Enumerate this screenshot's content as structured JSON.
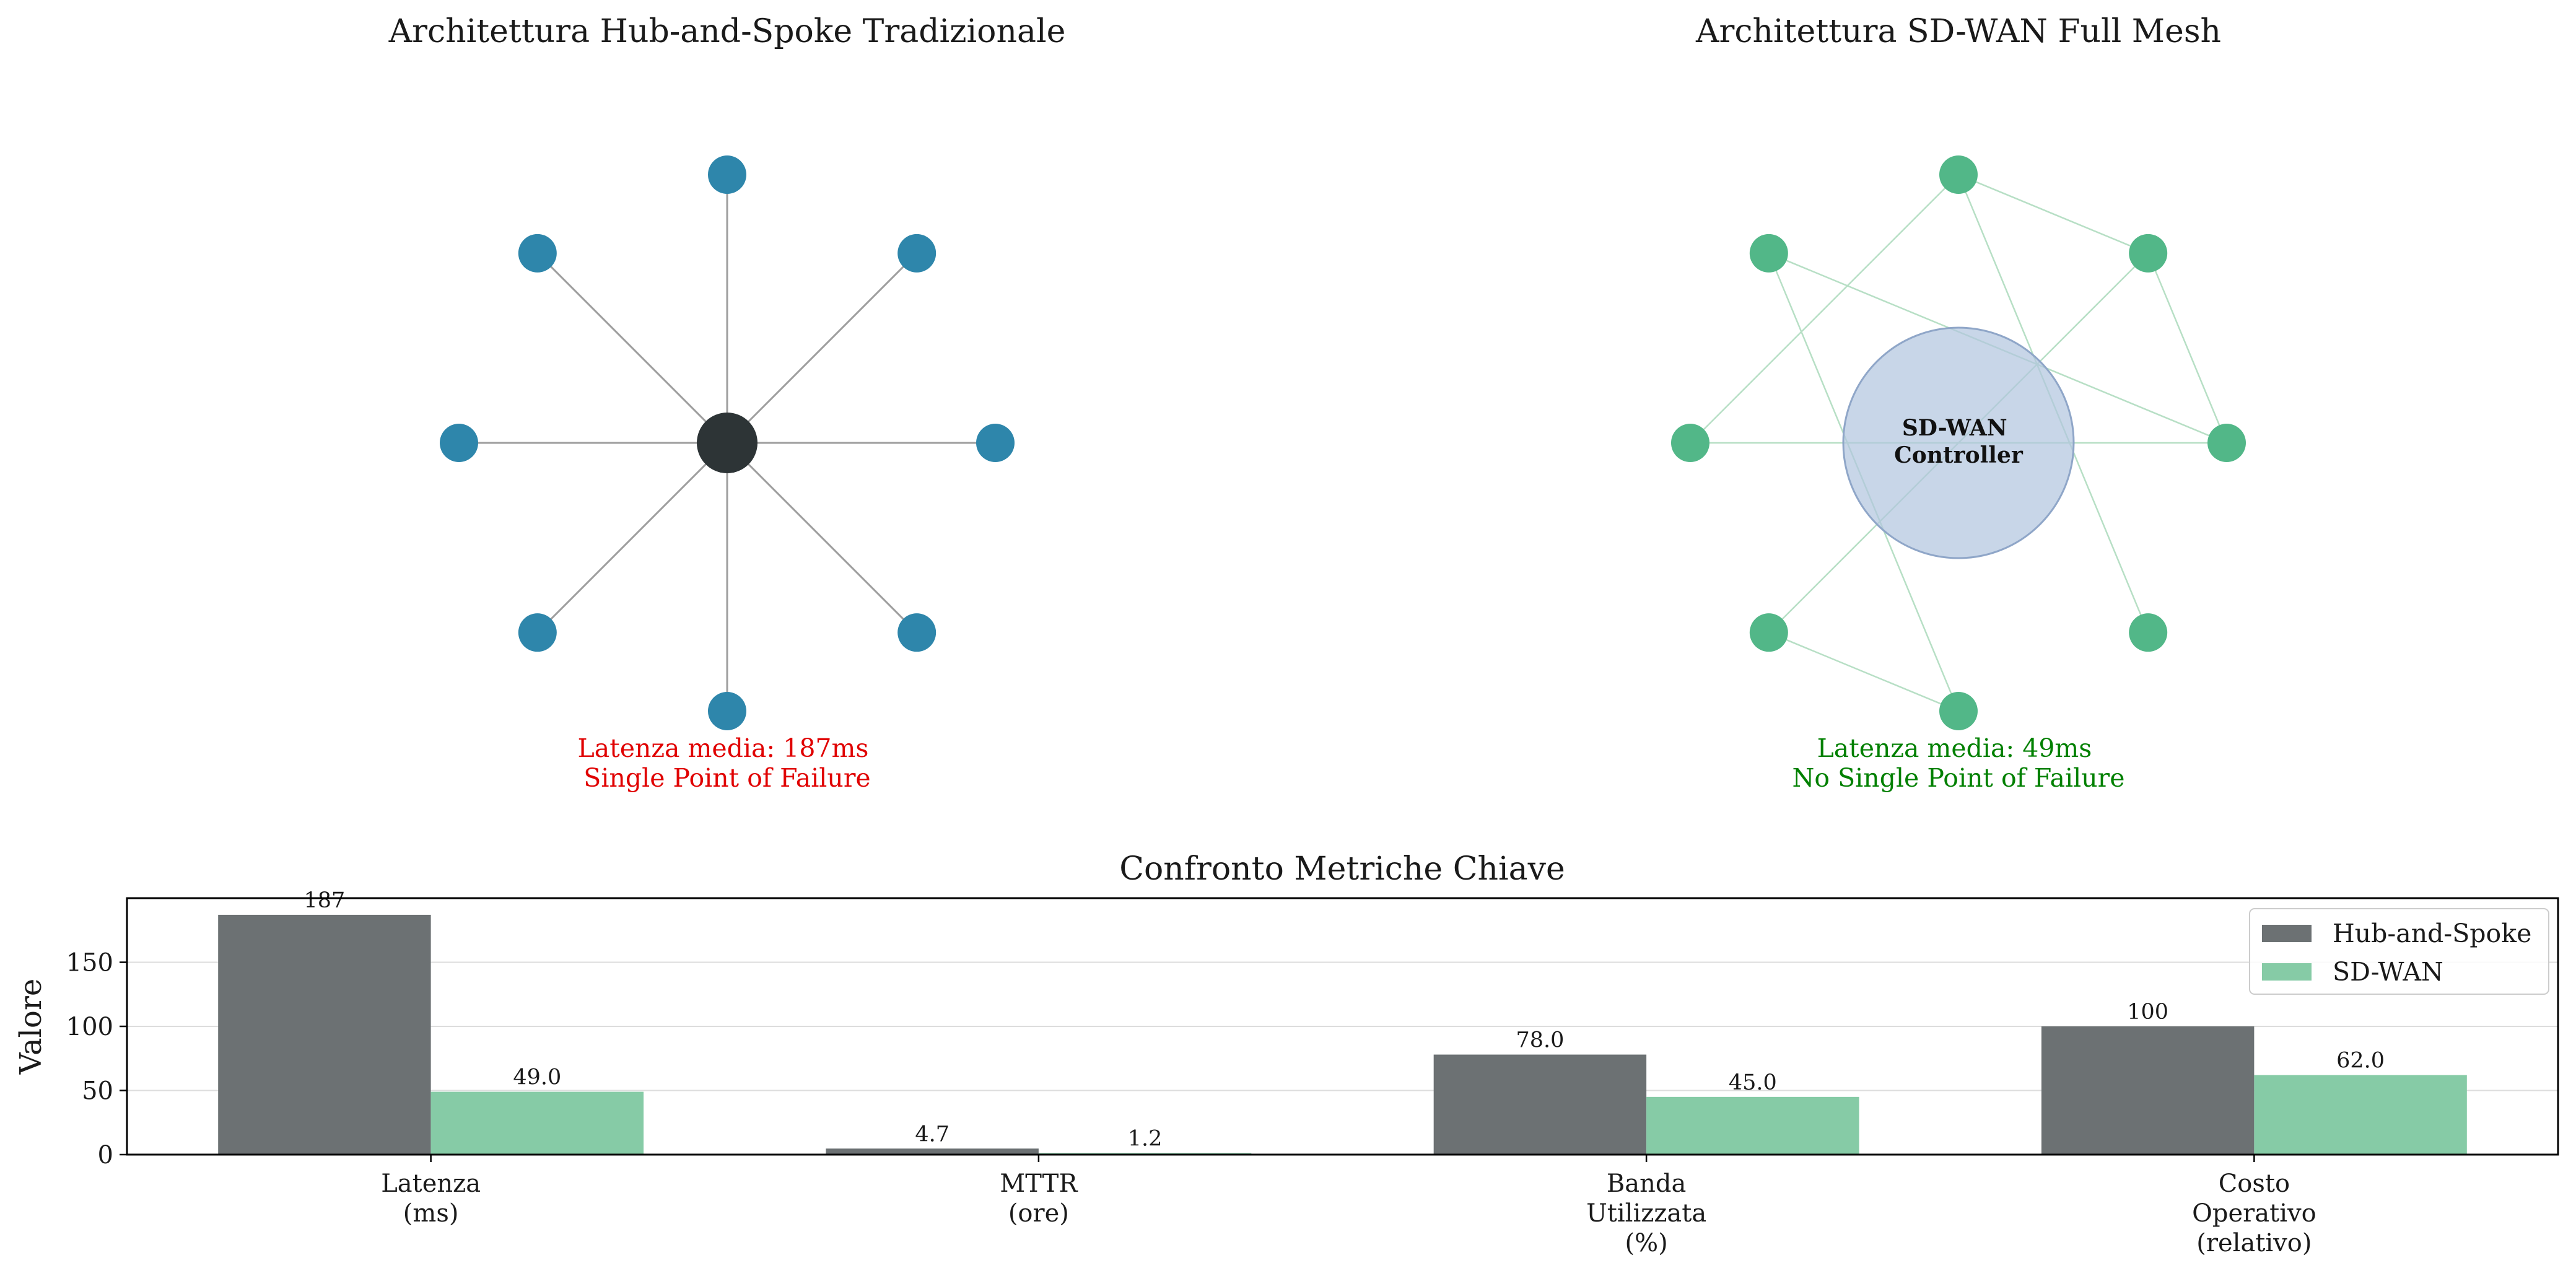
{
  "chart_data": [
    {
      "type": "network",
      "title": "Architettura Hub-and-Spoke Tradizionale",
      "topology": "hub-and-spoke",
      "hub_color": "#2d3436",
      "node_color": "#2e86ab",
      "link_color": "#9e9e9e",
      "node_count": 8,
      "annotation": [
        "Latenza media: 187ms",
        "Single Point of Failure"
      ],
      "annotation_color": "#e00000"
    },
    {
      "type": "network",
      "title": "Architettura SD-WAN Full Mesh",
      "topology": "mesh",
      "controller_label": [
        "SD-WAN",
        "Controller"
      ],
      "controller_color": "#b0c4de",
      "node_color": "#52b788",
      "link_color": "#b7dfc5",
      "node_count": 8,
      "links": [
        [
          0,
          1
        ],
        [
          0,
          3
        ],
        [
          0,
          4
        ],
        [
          1,
          2
        ],
        [
          1,
          5
        ],
        [
          2,
          4
        ],
        [
          2,
          7
        ],
        [
          3,
          6
        ],
        [
          5,
          6
        ]
      ],
      "annotation": [
        "Latenza media: 49ms",
        "No Single Point of Failure"
      ],
      "annotation_color": "#008000"
    },
    {
      "type": "bar",
      "title": "Confronto Metriche Chiave",
      "ylabel": "Valore",
      "ylim": [
        0,
        200
      ],
      "yticks": [
        0,
        50,
        100,
        150
      ],
      "grid": true,
      "legend_position": "top-right",
      "categories": [
        [
          "Latenza",
          "(ms)"
        ],
        [
          "MTTR",
          "(ore)"
        ],
        [
          "Banda",
          "Utilizzata",
          "(%)"
        ],
        [
          "Costo",
          "Operativo",
          "(relativo)"
        ]
      ],
      "series": [
        {
          "name": "Hub-and-Spoke",
          "color": "#6c7173",
          "values": [
            187,
            4.7,
            78.0,
            100
          ],
          "labels": [
            "187",
            "4.7",
            "78.0",
            "100"
          ]
        },
        {
          "name": "SD-WAN",
          "color": "#86cba6",
          "values": [
            49.0,
            1.2,
            45.0,
            62.0
          ],
          "labels": [
            "49.0",
            "1.2",
            "45.0",
            "62.0"
          ]
        }
      ]
    }
  ]
}
